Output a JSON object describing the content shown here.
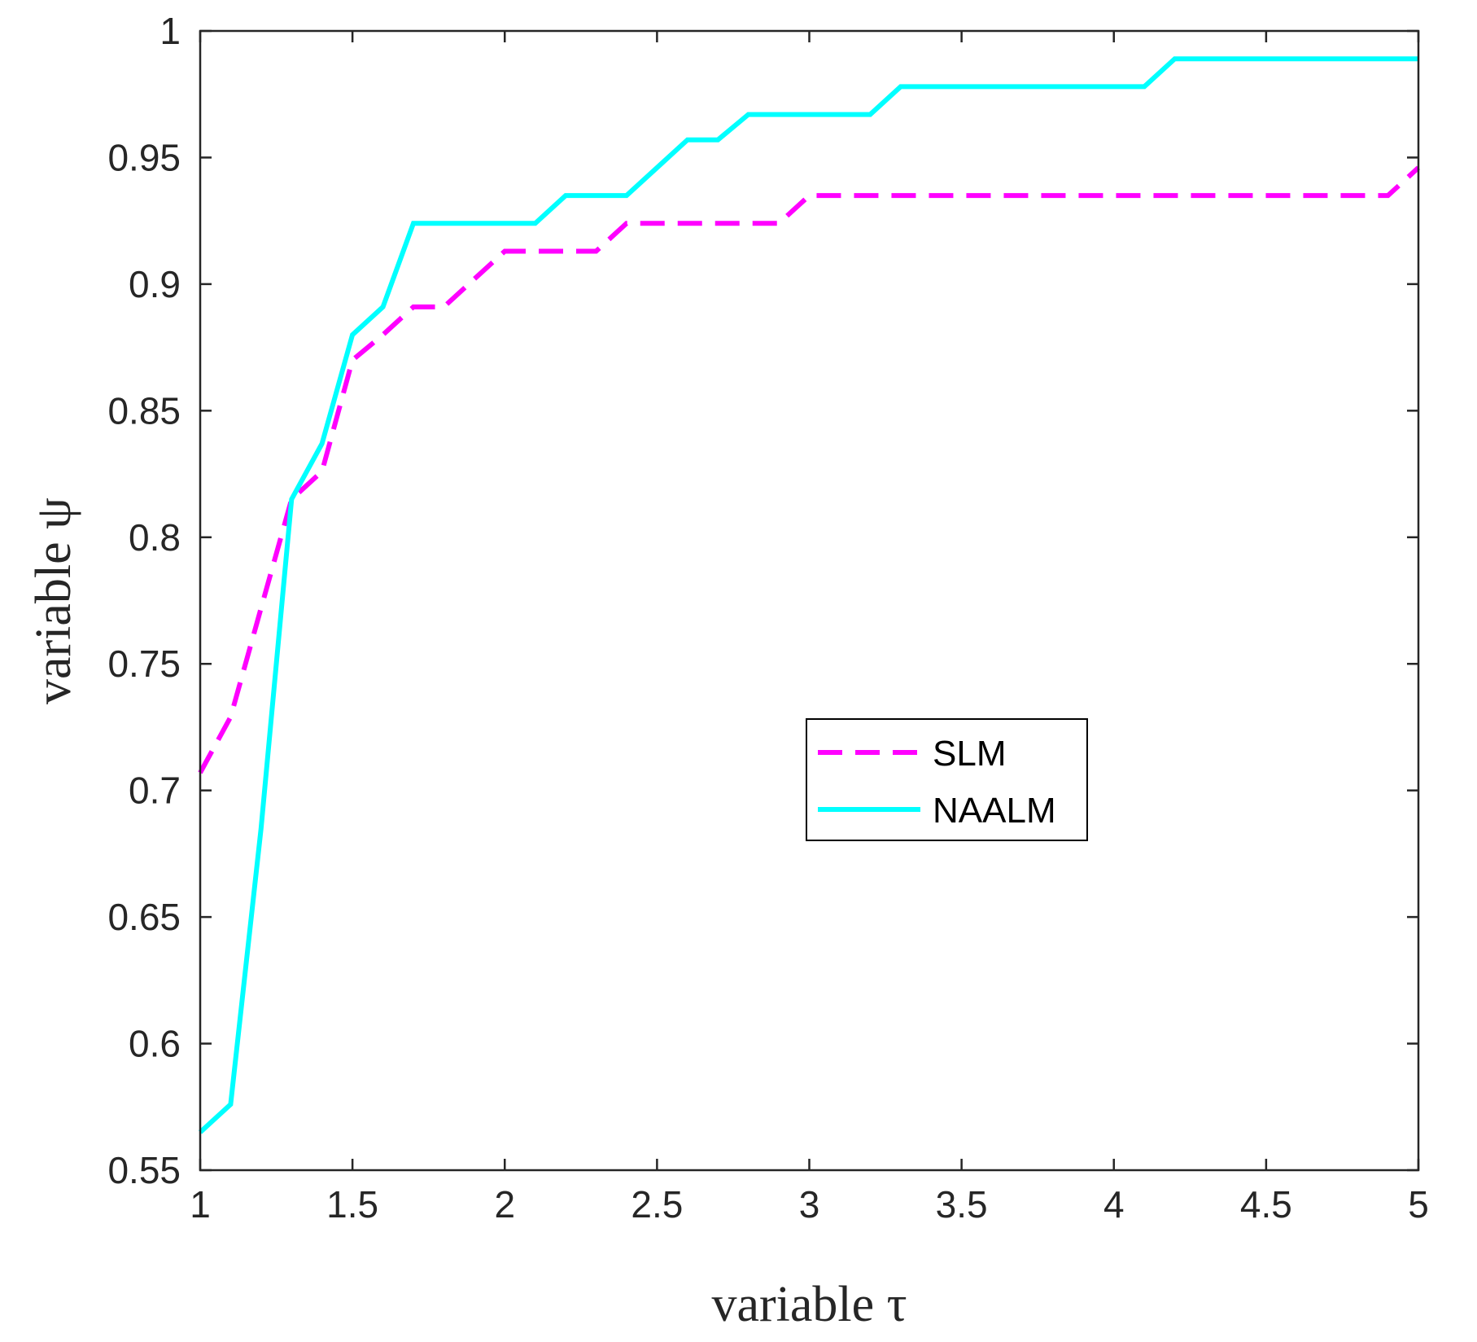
{
  "chart_data": {
    "type": "line",
    "title": "",
    "xlabel": "variable τ",
    "ylabel": "variable ψ",
    "xlim": [
      1,
      5
    ],
    "ylim": [
      0.55,
      1
    ],
    "xticks": [
      1,
      1.5,
      2,
      2.5,
      3,
      3.5,
      4,
      4.5,
      5
    ],
    "xtick_labels": [
      "1",
      "1.5",
      "2",
      "2.5",
      "3",
      "3.5",
      "4",
      "4.5",
      "5"
    ],
    "yticks": [
      0.55,
      0.6,
      0.65,
      0.7,
      0.75,
      0.8,
      0.85,
      0.9,
      0.95,
      1
    ],
    "ytick_labels": [
      "0.55",
      "0.6",
      "0.65",
      "0.7",
      "0.75",
      "0.8",
      "0.85",
      "0.9",
      "0.95",
      "1"
    ],
    "grid": false,
    "legend_position": "center-right",
    "series": [
      {
        "name": "SLM",
        "color": "#ff00ff",
        "style": "dashed",
        "x": [
          1.0,
          1.1,
          1.2,
          1.3,
          1.4,
          1.5,
          1.6,
          1.7,
          1.8,
          1.9,
          2.0,
          2.1,
          2.2,
          2.3,
          2.4,
          2.5,
          2.6,
          2.7,
          2.8,
          2.9,
          3.0,
          3.1,
          3.2,
          3.3,
          3.4,
          3.5,
          3.6,
          3.7,
          3.8,
          3.9,
          4.0,
          4.1,
          4.2,
          4.3,
          4.4,
          4.5,
          4.6,
          4.7,
          4.8,
          4.9,
          5.0
        ],
        "y": [
          0.707,
          0.729,
          0.772,
          0.815,
          0.826,
          0.87,
          0.88,
          0.891,
          0.891,
          0.902,
          0.913,
          0.913,
          0.913,
          0.913,
          0.924,
          0.924,
          0.924,
          0.924,
          0.924,
          0.924,
          0.935,
          0.935,
          0.935,
          0.935,
          0.935,
          0.935,
          0.935,
          0.935,
          0.935,
          0.935,
          0.935,
          0.935,
          0.935,
          0.935,
          0.935,
          0.935,
          0.935,
          0.935,
          0.935,
          0.935,
          0.946
        ]
      },
      {
        "name": "NAALM",
        "color": "#00ffff",
        "style": "solid",
        "x": [
          1.0,
          1.1,
          1.2,
          1.3,
          1.4,
          1.5,
          1.6,
          1.7,
          1.8,
          1.9,
          2.0,
          2.1,
          2.2,
          2.3,
          2.4,
          2.5,
          2.6,
          2.7,
          2.8,
          2.9,
          3.0,
          3.1,
          3.2,
          3.3,
          3.4,
          3.5,
          3.6,
          3.7,
          3.8,
          3.9,
          4.0,
          4.1,
          4.2,
          4.3,
          4.4,
          4.5,
          4.6,
          4.7,
          4.8,
          4.9,
          5.0
        ],
        "y": [
          0.565,
          0.576,
          0.685,
          0.815,
          0.837,
          0.88,
          0.891,
          0.924,
          0.924,
          0.924,
          0.924,
          0.924,
          0.935,
          0.935,
          0.935,
          0.946,
          0.957,
          0.957,
          0.967,
          0.967,
          0.967,
          0.967,
          0.967,
          0.978,
          0.978,
          0.978,
          0.978,
          0.978,
          0.978,
          0.978,
          0.978,
          0.978,
          0.989,
          0.989,
          0.989,
          0.989,
          0.989,
          0.989,
          0.989,
          0.989,
          0.989
        ]
      }
    ]
  }
}
